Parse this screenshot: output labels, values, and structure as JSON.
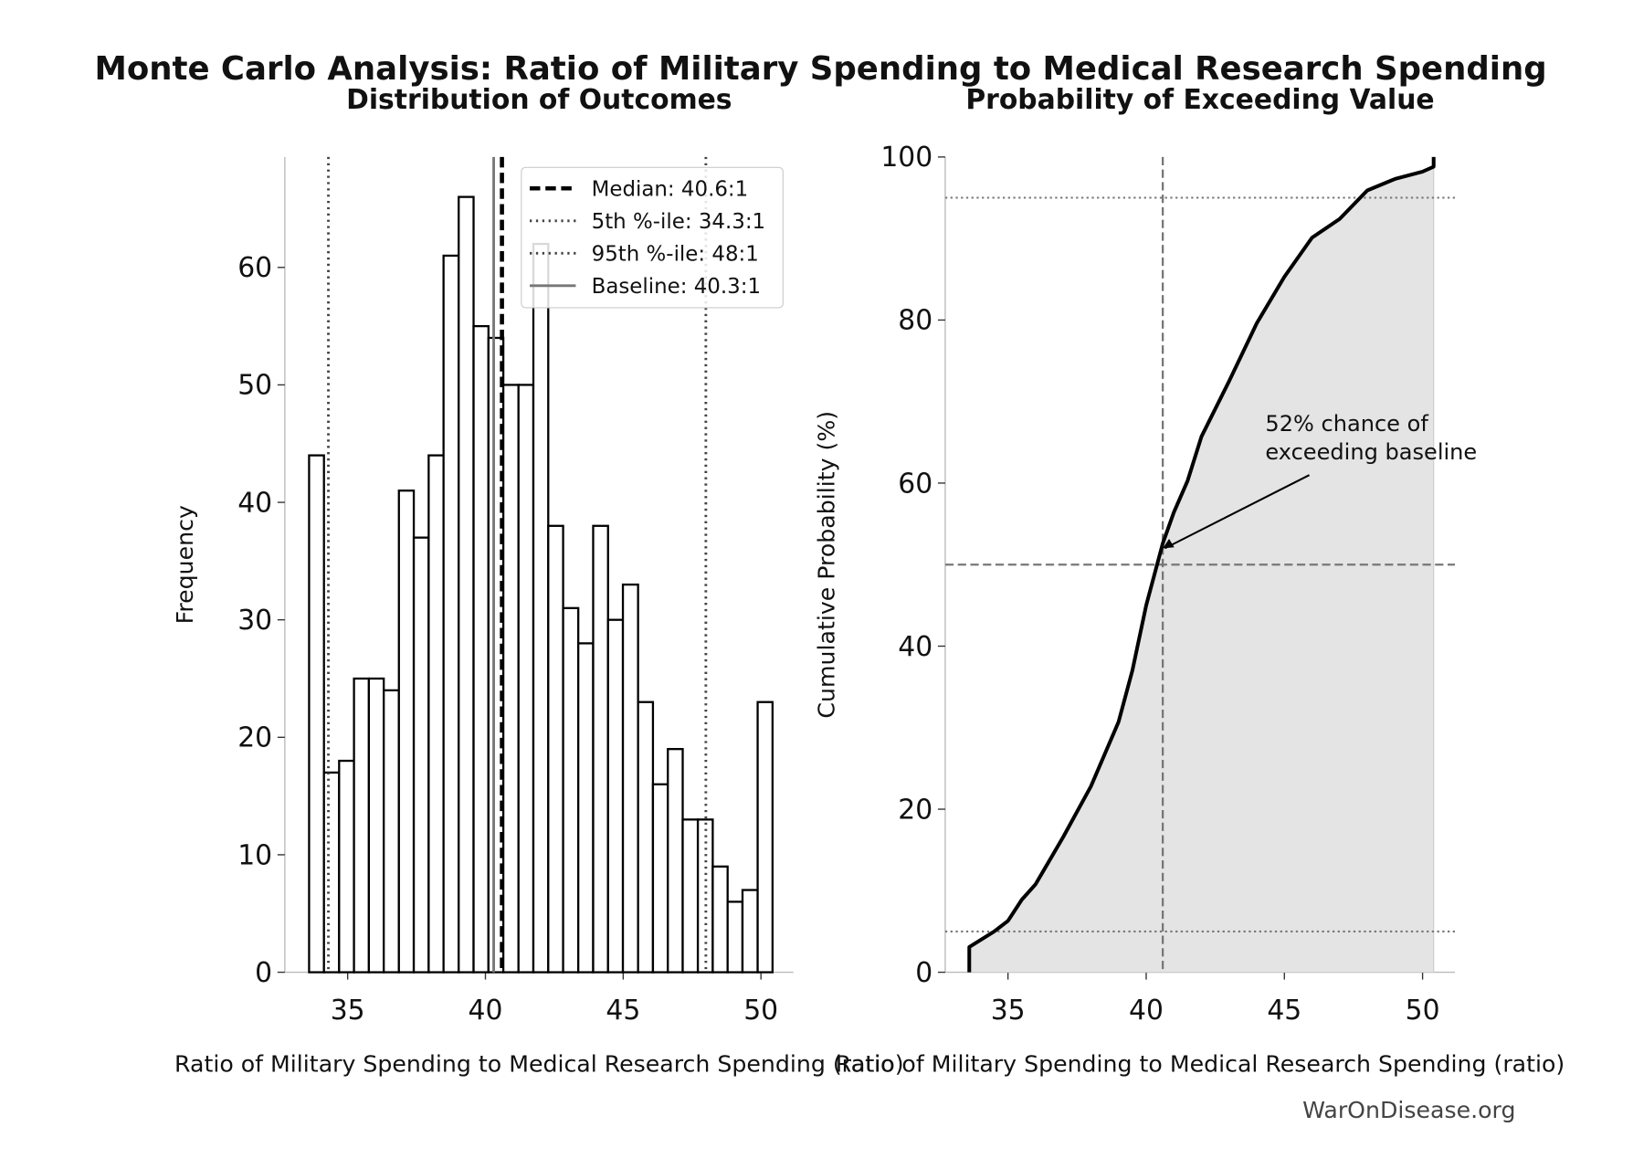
{
  "title": "Monte Carlo Analysis: Ratio of Military Spending to Medical Research Spending",
  "footer": "WarOnDisease.org",
  "chart_data": [
    {
      "type": "histogram",
      "title": "Distribution of Outcomes",
      "xlabel": "Ratio of Military Spending to Medical Research Spending (ratio)",
      "ylabel": "Frequency",
      "bins": [
        33.6,
        34.14,
        34.69,
        35.23,
        35.77,
        36.31,
        36.86,
        37.4,
        37.94,
        38.48,
        39.03,
        39.57,
        40.11,
        40.65,
        41.2,
        41.74,
        42.28,
        42.82,
        43.37,
        43.91,
        44.45,
        44.99,
        45.54,
        46.08,
        46.62,
        47.16,
        47.71,
        48.25,
        48.79,
        49.33,
        49.88,
        50.42
      ],
      "counts": [
        44,
        17,
        18,
        25,
        25,
        24,
        41,
        37,
        44,
        61,
        66,
        55,
        54,
        50,
        50,
        62,
        38,
        31,
        28,
        38,
        30,
        33,
        23,
        16,
        19,
        13,
        13,
        9,
        6,
        7,
        23
      ],
      "color": "#ffffff",
      "edgecolor": "#000000",
      "xlim": [
        32.72,
        51.18
      ],
      "ylim": [
        0,
        69.4
      ],
      "xticks": [
        35,
        40,
        45,
        50
      ],
      "yticks": [
        0,
        10,
        20,
        30,
        40,
        50,
        60
      ],
      "vlines": [
        {
          "name": "Median: 40.6:1",
          "value": 40.6,
          "style": "dashed",
          "color": "#000000"
        },
        {
          "name": "5th %-ile: 34.3:1",
          "value": 34.3,
          "style": "dotted",
          "color": "#444444"
        },
        {
          "name": "95th %-ile: 48:1",
          "value": 48.0,
          "style": "dotted",
          "color": "#444444"
        },
        {
          "name": "Baseline: 40.3:1",
          "value": 40.3,
          "style": "solid",
          "color": "#777777"
        }
      ],
      "legend": "upper right"
    },
    {
      "type": "line",
      "title": "Probability of Exceeding Value",
      "xlabel": "Ratio of Military Spending to Medical Research Spending (ratio)",
      "ylabel": "Cumulative Probability (%)",
      "x": [
        33.6,
        33.6,
        34.5,
        35,
        35.5,
        36,
        37,
        38,
        39,
        39.5,
        40,
        40.6,
        41,
        41.5,
        42,
        43,
        44,
        45,
        46,
        47,
        48,
        49,
        50,
        50.4,
        50.4
      ],
      "y": [
        0,
        3.1,
        5,
        6.3,
        8.9,
        10.8,
        16.6,
        22.8,
        30.7,
        37,
        45,
        52.6,
        56.4,
        60.3,
        65.7,
        72.5,
        79.6,
        85.3,
        90.1,
        92.4,
        95.9,
        97.3,
        98.2,
        98.8,
        100
      ],
      "color": "#000000",
      "fill": "#e4e4e4",
      "xlim": [
        32.73,
        51.17
      ],
      "ylim": [
        0,
        100
      ],
      "xticks": [
        35,
        40,
        45,
        50
      ],
      "yticks": [
        0,
        20,
        40,
        60,
        80,
        100
      ],
      "hlines": [
        {
          "value": 95,
          "style": "dotted"
        },
        {
          "value": 50,
          "style": "dashed"
        },
        {
          "value": 5,
          "style": "dotted"
        }
      ],
      "vlines": [
        {
          "value": 40.6,
          "style": "dashed"
        }
      ],
      "annotation": {
        "text": [
          "52% chance of",
          "exceeding baseline"
        ],
        "xy": [
          40.6,
          52
        ]
      }
    }
  ]
}
